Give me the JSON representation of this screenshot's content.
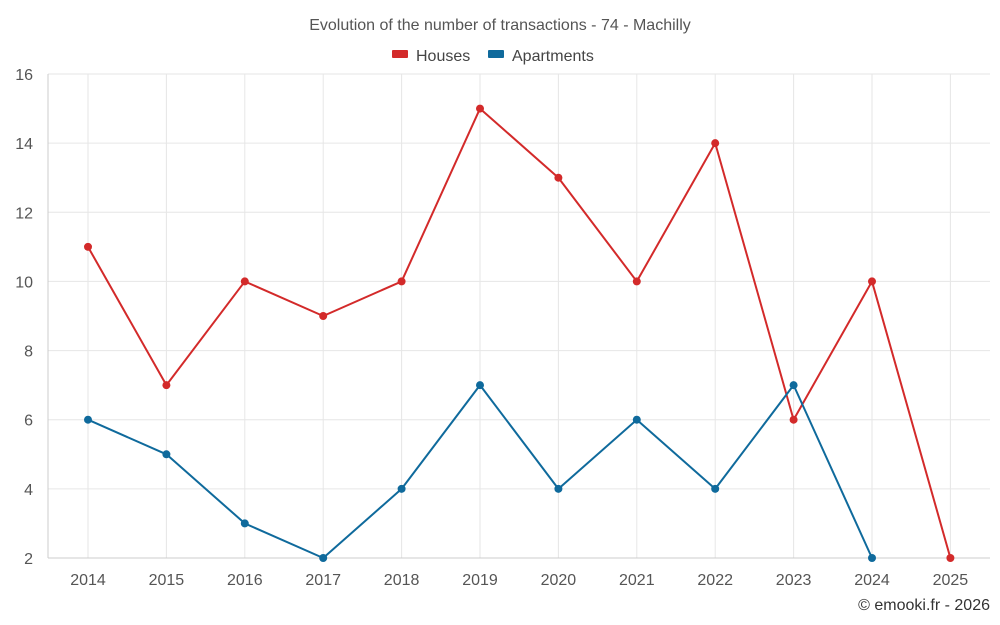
{
  "chart_data": {
    "type": "line",
    "title": "Evolution of the number of transactions - 74 - Machilly",
    "categories": [
      "2014",
      "2015",
      "2016",
      "2017",
      "2018",
      "2019",
      "2020",
      "2021",
      "2022",
      "2023",
      "2024",
      "2025"
    ],
    "ylim": [
      2,
      16
    ],
    "yticks": [
      2,
      4,
      6,
      8,
      10,
      12,
      14,
      16
    ],
    "grid": true,
    "legend_position": "top-center",
    "series": [
      {
        "name": "Houses",
        "color": "#d32a2a",
        "values": [
          11,
          7,
          10,
          9,
          10,
          15,
          13,
          10,
          14,
          6,
          10,
          2
        ]
      },
      {
        "name": "Apartments",
        "color": "#0f6a9c",
        "values": [
          6,
          5,
          3,
          2,
          4,
          7,
          4,
          6,
          4,
          7,
          2,
          null
        ]
      }
    ],
    "credit": "© emooki.fr - 2026"
  }
}
